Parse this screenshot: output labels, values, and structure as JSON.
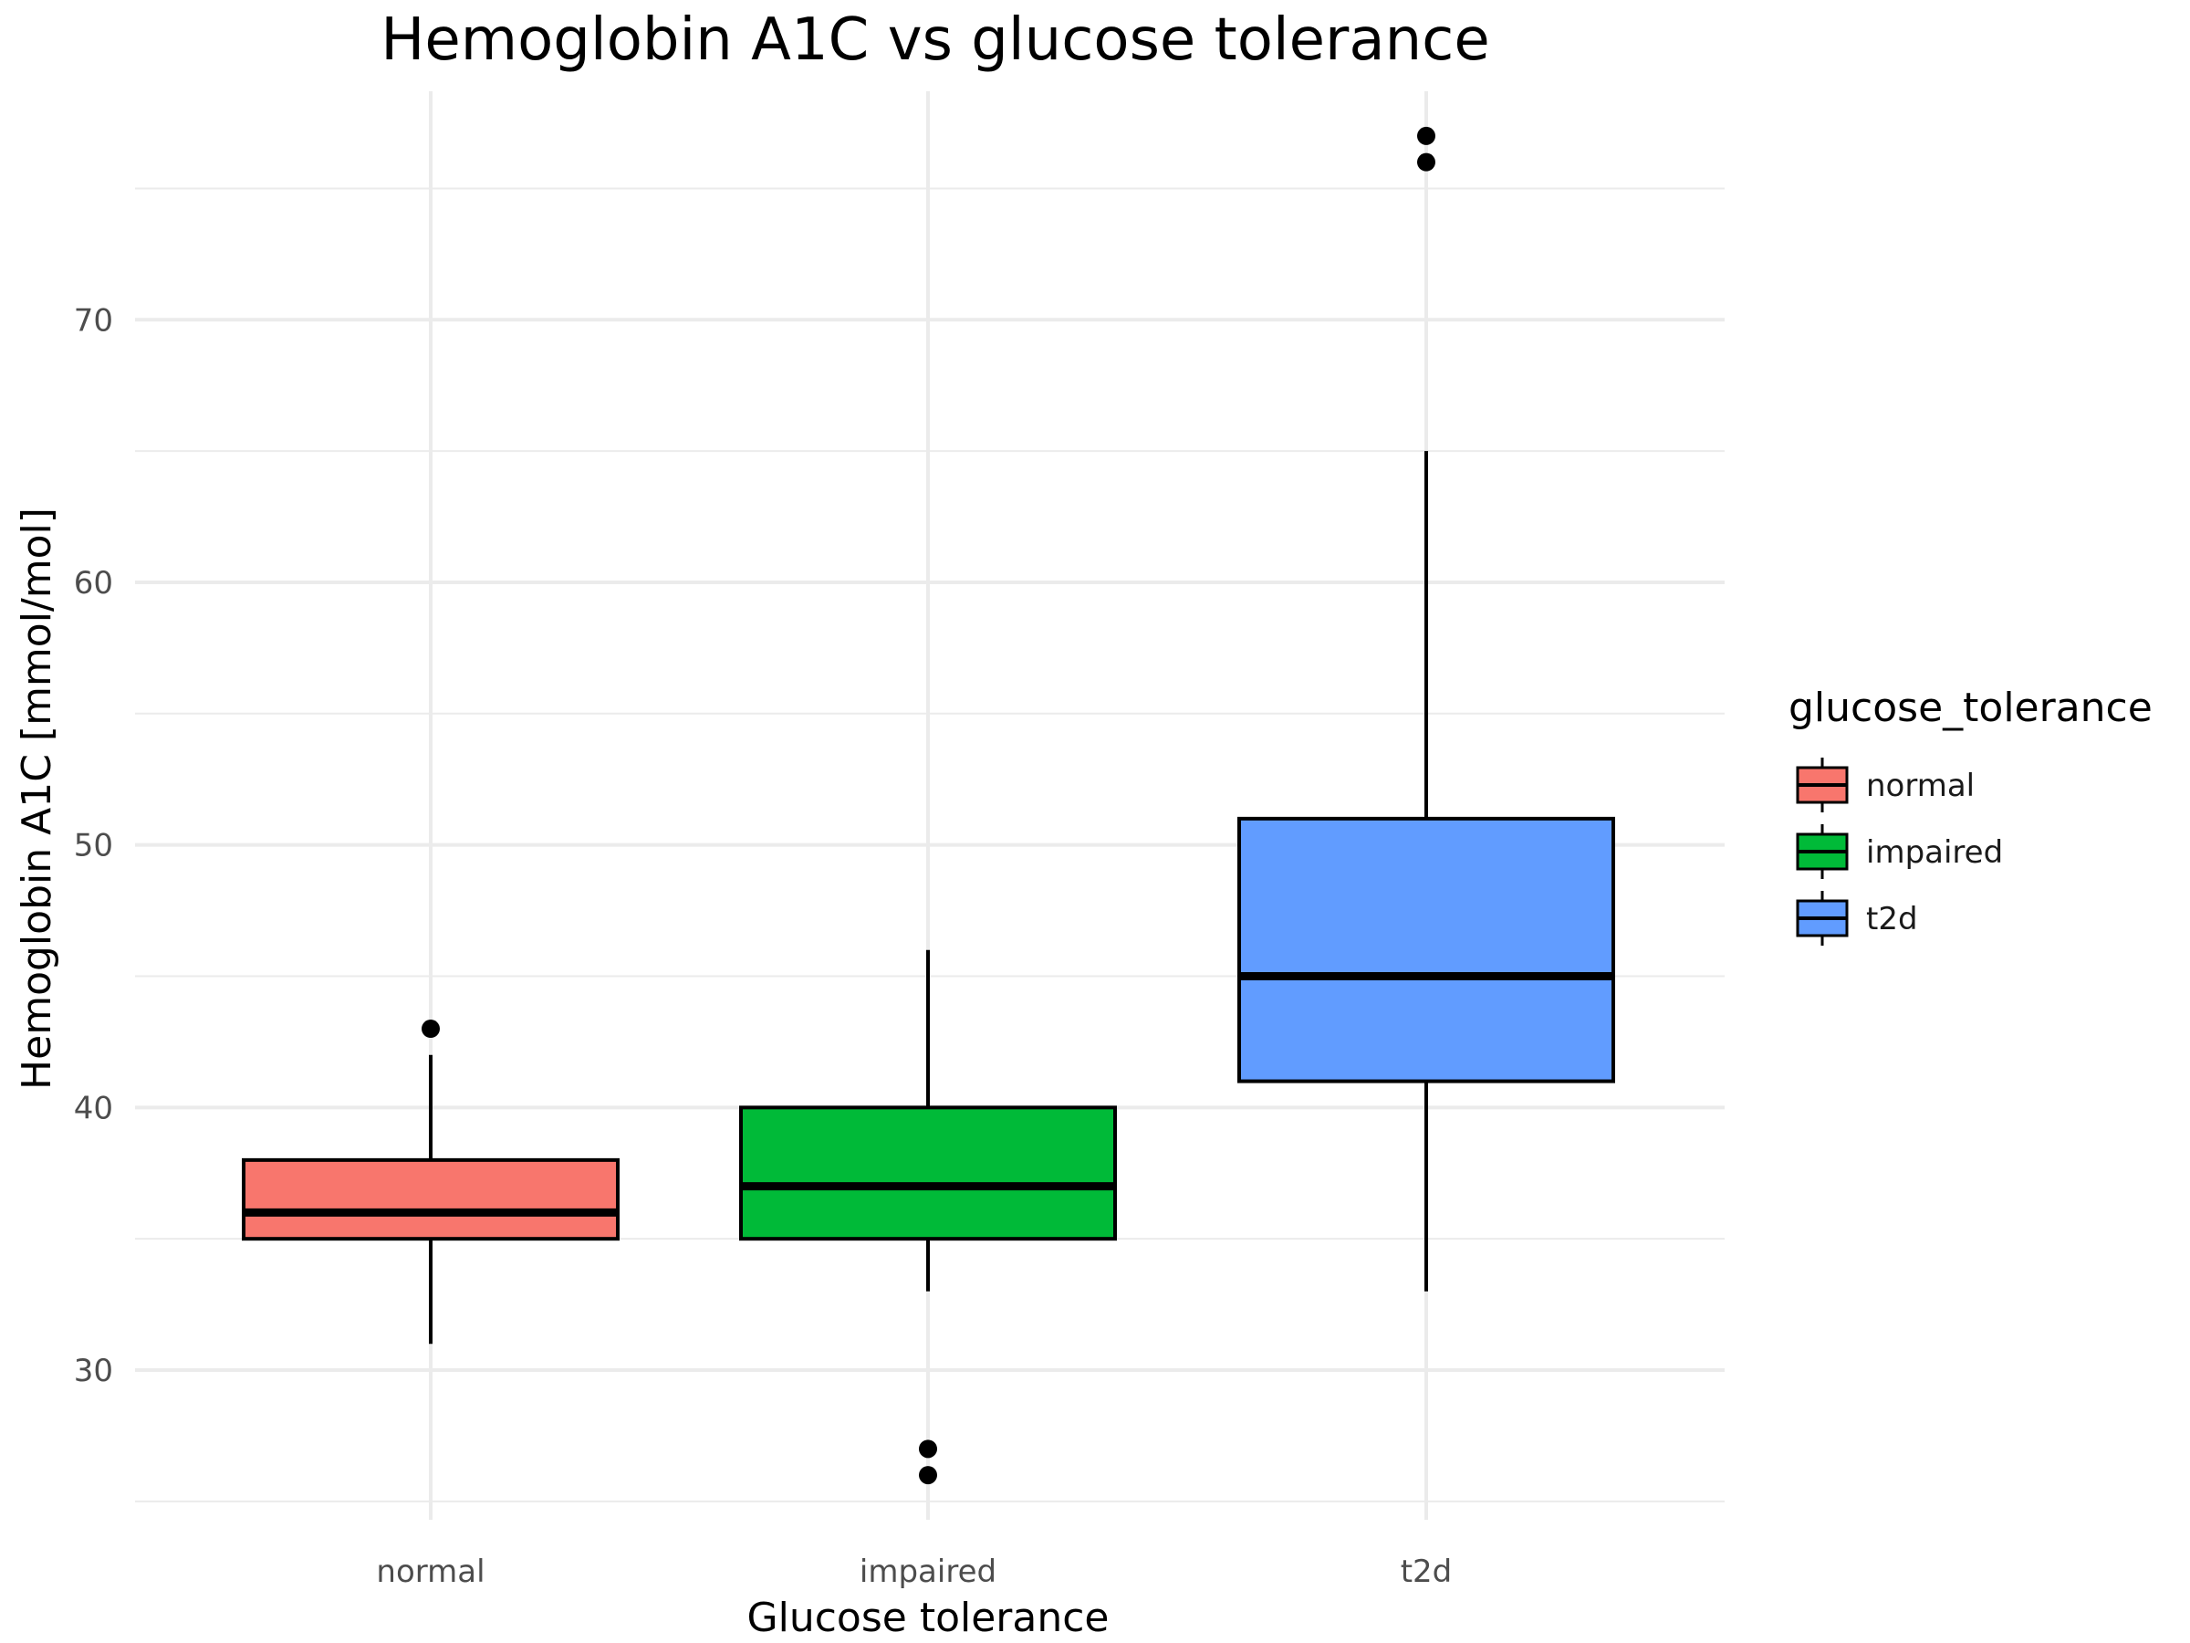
{
  "chart_data": {
    "type": "boxplot",
    "title": "Hemoglobin A1C vs glucose tolerance",
    "xlabel": "Glucose tolerance",
    "ylabel": "Hemoglobin A1C [mmol/mol]",
    "categories": [
      "normal",
      "impaired",
      "t2d"
    ],
    "ylim": [
      24.3,
      78.7
    ],
    "yticks": [
      30,
      40,
      50,
      60,
      70
    ],
    "grid": true,
    "legend": {
      "title": "glucose_tolerance",
      "position": "right",
      "entries": [
        "normal",
        "impaired",
        "t2d"
      ]
    },
    "series": [
      {
        "category": "normal",
        "color": "#F8766D",
        "whisker_low": 31,
        "q1": 35,
        "median": 36,
        "q3": 38,
        "whisker_high": 42,
        "outliers": [
          43
        ]
      },
      {
        "category": "impaired",
        "color": "#00BA38",
        "whisker_low": 33,
        "q1": 35,
        "median": 37,
        "q3": 40,
        "whisker_high": 46,
        "outliers": [
          27,
          26
        ]
      },
      {
        "category": "t2d",
        "color": "#619CFF",
        "whisker_low": 33,
        "q1": 41,
        "median": 45,
        "q3": 51,
        "whisker_high": 65,
        "outliers": [
          77,
          76
        ]
      }
    ]
  }
}
